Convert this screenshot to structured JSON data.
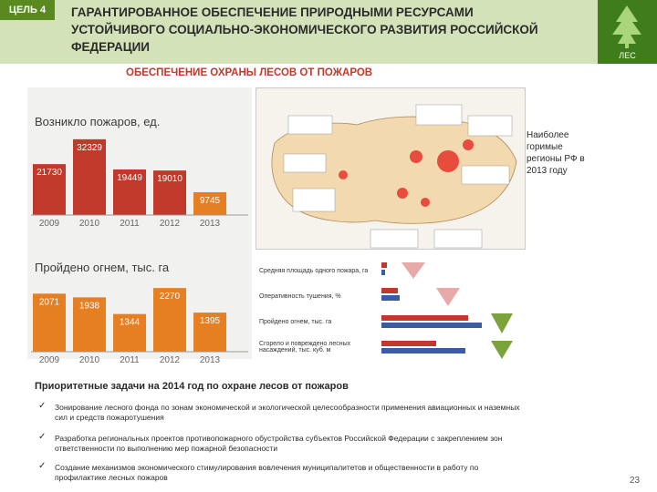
{
  "header": {
    "goal": "ЦЕЛЬ 4",
    "title": "ГАРАНТИРОВАННОЕ ОБЕСПЕЧЕНИЕ ПРИРОДНЫМИ РЕСУРСАМИ УСТОЙЧИВОГО СОЦИАЛЬНО-ЭКОНОМИЧЕСКОГО РАЗВИТИЯ РОССИЙСКОЙ ФЕДЕРАЦИИ",
    "logo_text": "ЛЕС"
  },
  "subtitle": "ОБЕСПЕЧЕНИЕ ОХРАНЫ ЛЕСОВ ОТ ПОЖАРОВ",
  "side_note": "Наиболее горимые регионы РФ в 2013 году",
  "chart_data": [
    {
      "type": "bar",
      "title": "Возникло пожаров, ед.",
      "categories": [
        "2009",
        "2010",
        "2011",
        "2012",
        "2013"
      ],
      "values": [
        21730,
        32329,
        19449,
        19010,
        9745
      ],
      "labels": [
        "21730",
        "32329",
        "19449",
        "19010",
        "9745"
      ],
      "colors": [
        "#c0392b",
        "#c0392b",
        "#c0392b",
        "#c0392b",
        "#e67e22"
      ],
      "ylim": [
        0,
        35000
      ]
    },
    {
      "type": "bar",
      "title": "Пройдено огнем, тыс. га",
      "categories": [
        "2009",
        "2010",
        "2011",
        "2012",
        "2013"
      ],
      "values": [
        2071,
        1938,
        1344,
        2270,
        1395
      ],
      "labels": [
        "2071",
        "1938",
        "1344",
        "2270",
        "1395"
      ],
      "colors": [
        "#e67e22",
        "#e67e22",
        "#e67e22",
        "#e67e22",
        "#e67e22"
      ],
      "ylim": [
        0,
        2600
      ]
    }
  ],
  "compare": {
    "rows": [
      {
        "label": "Средняя площадь одного пожара, га"
      },
      {
        "label": "Оперативность тушения, %"
      },
      {
        "label": "Пройдено огнем, тыс. га"
      },
      {
        "label": "Сгорело и повреждено лесных насаждений, тыс. куб. м"
      }
    ]
  },
  "priorities": {
    "title": "Приоритетные задачи на 2014 год по охране лесов от пожаров",
    "items": [
      "Зонирование лесного фонда по зонам экономической и экологической целесообразности применения авиационных и наземных сил и средств пожаротушения",
      "Разработка региональных проектов противопожарного обустройства субъектов Российской Федерации с закреплением зон ответственности по выполнению мер пожарной безопасности",
      "Создание механизмов экономического стимулирования вовлечения муниципалитетов и общественности в работу по профилактике лесных пожаров"
    ]
  },
  "page_number": "23"
}
